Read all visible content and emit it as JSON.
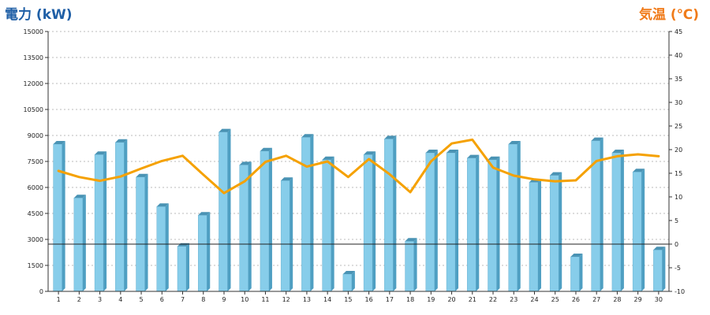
{
  "chart_data": {
    "type": "bar",
    "ylabel": "電力 (kW)",
    "ylabel_right": "気温 (℃)",
    "categories": [
      "1",
      "2",
      "3",
      "4",
      "5",
      "6",
      "7",
      "8",
      "9",
      "10",
      "11",
      "12",
      "13",
      "14",
      "15",
      "16",
      "17",
      "18",
      "19",
      "20",
      "21",
      "22",
      "23",
      "24",
      "25",
      "26",
      "27",
      "28",
      "29",
      "30"
    ],
    "series": [
      {
        "axis": "left",
        "type": "bar",
        "color": "#7ec8e6",
        "values": [
          8500,
          5400,
          7900,
          8600,
          6600,
          4900,
          2600,
          4400,
          9200,
          7300,
          8100,
          6400,
          8900,
          7600,
          1000,
          7900,
          8800,
          2900,
          8000,
          8000,
          7700,
          7600,
          8500,
          6300,
          6700,
          2000,
          8700,
          8000,
          6900,
          2400
        ]
      },
      {
        "axis": "right",
        "type": "line",
        "color": "#f5a100",
        "values": [
          15.5,
          14.2,
          13.4,
          14.3,
          16.0,
          17.6,
          18.7,
          14.7,
          10.8,
          13.3,
          17.4,
          18.7,
          16.4,
          17.5,
          14.2,
          18.0,
          14.8,
          11.0,
          17.5,
          21.3,
          22.1,
          16.2,
          14.5,
          13.7,
          13.3,
          13.5,
          17.6,
          18.6,
          19.0,
          18.6
        ]
      }
    ],
    "ylim": [
      0,
      15000
    ],
    "yticks": [
      0,
      1500,
      3000,
      4500,
      6000,
      7500,
      9000,
      10500,
      12000,
      13500,
      15000
    ],
    "ylim_right": [
      -10,
      45
    ],
    "yticks_right": [
      -10,
      -5,
      0,
      5,
      10,
      15,
      20,
      25,
      30,
      35,
      40,
      45
    ],
    "reference_line_right": 0,
    "grid": true
  }
}
